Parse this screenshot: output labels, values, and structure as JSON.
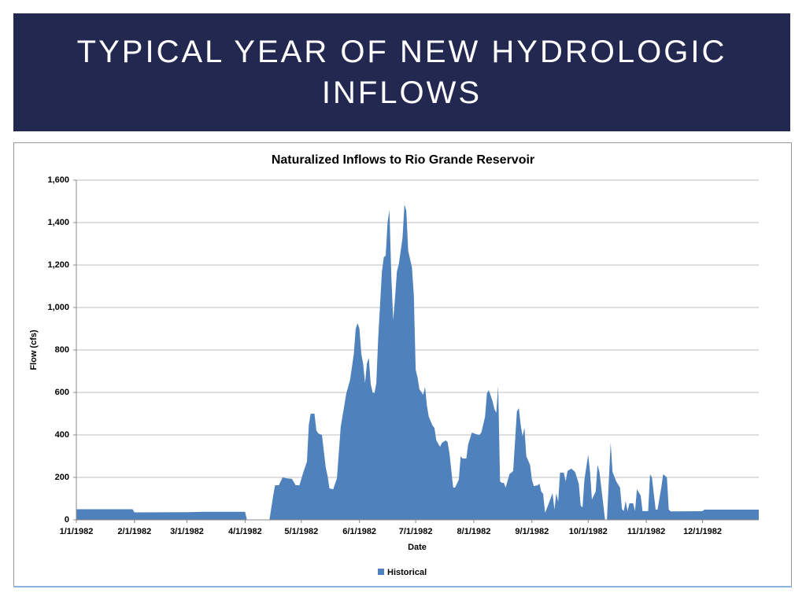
{
  "header": {
    "title": "TYPICAL YEAR OF NEW HYDROLOGIC INFLOWS"
  },
  "chart_data": {
    "type": "area",
    "title": "Naturalized Inflows to Rio Grande Reservoir",
    "x_label": "Date",
    "y_label": "Flow (cfs)",
    "x": [
      "1982-01-01",
      "1982-01-31",
      "1982-02-01",
      "1982-03-01",
      "1982-03-10",
      "1982-04-01",
      "1982-04-02",
      "1982-04-14",
      "1982-04-16",
      "1982-04-17",
      "1982-04-19",
      "1982-04-21",
      "1982-04-23",
      "1982-04-26",
      "1982-04-28",
      "1982-04-30",
      "1982-05-02",
      "1982-05-04",
      "1982-05-05",
      "1982-05-06",
      "1982-05-08",
      "1982-05-09",
      "1982-05-10",
      "1982-05-12",
      "1982-05-14",
      "1982-05-15",
      "1982-05-16",
      "1982-05-18",
      "1982-05-20",
      "1982-05-22",
      "1982-05-25",
      "1982-05-27",
      "1982-05-29",
      "1982-05-30",
      "1982-05-31",
      "1982-06-01",
      "1982-06-02",
      "1982-06-03",
      "1982-06-04",
      "1982-06-05",
      "1982-06-06",
      "1982-06-07",
      "1982-06-08",
      "1982-06-09",
      "1982-06-10",
      "1982-06-11",
      "1982-06-13",
      "1982-06-14",
      "1982-06-15",
      "1982-06-16",
      "1982-06-17",
      "1982-06-18",
      "1982-06-19",
      "1982-06-20",
      "1982-06-21",
      "1982-06-22",
      "1982-06-24",
      "1982-06-25",
      "1982-06-26",
      "1982-06-27",
      "1982-06-29",
      "1982-06-30",
      "1982-07-01",
      "1982-07-02",
      "1982-07-03",
      "1982-07-05",
      "1982-07-06",
      "1982-07-07",
      "1982-07-08",
      "1982-07-10",
      "1982-07-11",
      "1982-07-12",
      "1982-07-14",
      "1982-07-15",
      "1982-07-17",
      "1982-07-18",
      "1982-07-19",
      "1982-07-21",
      "1982-07-22",
      "1982-07-24",
      "1982-07-25",
      "1982-07-26",
      "1982-07-28",
      "1982-07-29",
      "1982-07-31",
      "1982-08-02",
      "1982-08-04",
      "1982-08-05",
      "1982-08-07",
      "1982-08-08",
      "1982-08-09",
      "1982-08-11",
      "1982-08-12",
      "1982-08-13",
      "1982-08-14",
      "1982-08-15",
      "1982-08-16",
      "1982-08-17",
      "1982-08-18",
      "1982-08-20",
      "1982-08-22",
      "1982-08-24",
      "1982-08-25",
      "1982-08-26",
      "1982-08-27",
      "1982-08-28",
      "1982-08-29",
      "1982-08-31",
      "1982-09-01",
      "1982-09-02",
      "1982-09-04",
      "1982-09-05",
      "1982-09-06",
      "1982-09-07",
      "1982-09-08",
      "1982-09-10",
      "1982-09-12",
      "1982-09-13",
      "1982-09-14",
      "1982-09-15",
      "1982-09-16",
      "1982-09-18",
      "1982-09-19",
      "1982-09-20",
      "1982-09-22",
      "1982-09-24",
      "1982-09-26",
      "1982-09-27",
      "1982-09-28",
      "1982-09-29",
      "1982-10-01",
      "1982-10-02",
      "1982-10-03",
      "1982-10-04",
      "1982-10-05",
      "1982-10-06",
      "1982-10-07",
      "1982-10-09",
      "1982-10-10",
      "1982-10-11",
      "1982-10-13",
      "1982-10-14",
      "1982-10-16",
      "1982-10-18",
      "1982-10-19",
      "1982-10-20",
      "1982-10-21",
      "1982-10-22",
      "1982-10-23",
      "1982-10-25",
      "1982-10-26",
      "1982-10-27",
      "1982-10-29",
      "1982-10-30",
      "1982-11-02",
      "1982-11-03",
      "1982-11-04",
      "1982-11-06",
      "1982-11-07",
      "1982-11-09",
      "1982-11-10",
      "1982-11-12",
      "1982-11-13",
      "1982-11-14",
      "1982-12-01",
      "1982-12-02",
      "1982-12-31"
    ],
    "series": [
      {
        "name": "Historical",
        "color": "#4f81bd",
        "values": [
          50,
          50,
          35,
          36,
          38,
          38,
          0,
          0,
          115,
          163,
          163,
          200,
          196,
          193,
          163,
          163,
          222,
          274,
          448,
          500,
          500,
          422,
          407,
          400,
          248,
          207,
          148,
          144,
          196,
          437,
          596,
          659,
          781,
          900,
          926,
          900,
          781,
          733,
          644,
          737,
          763,
          641,
          600,
          596,
          644,
          856,
          1170,
          1237,
          1244,
          1400,
          1459,
          1150,
          940,
          1048,
          1170,
          1204,
          1330,
          1485,
          1456,
          1267,
          1189,
          1059,
          707,
          670,
          615,
          589,
          626,
          537,
          485,
          444,
          433,
          374,
          344,
          363,
          374,
          367,
          315,
          152,
          152,
          189,
          300,
          289,
          289,
          356,
          411,
          404,
          400,
          411,
          485,
          596,
          611,
          559,
          522,
          504,
          630,
          181,
          174,
          174,
          152,
          215,
          230,
          511,
          526,
          448,
          393,
          433,
          300,
          259,
          189,
          159,
          163,
          170,
          133,
          122,
          33,
          78,
          126,
          48,
          126,
          85,
          222,
          222,
          181,
          230,
          241,
          226,
          170,
          67,
          59,
          189,
          307,
          226,
          96,
          115,
          133,
          259,
          226,
          78,
          0,
          0,
          363,
          226,
          181,
          152,
          52,
          41,
          89,
          41,
          78,
          78,
          41,
          144,
          115,
          41,
          41,
          215,
          200,
          48,
          48,
          152,
          215,
          200,
          48,
          40,
          41,
          48,
          48
        ]
      }
    ],
    "xlim": [
      "1982-01-01",
      "1982-12-31"
    ],
    "xticks": [
      {
        "value": "1982-01-01",
        "label": "1/1/1982"
      },
      {
        "value": "1982-02-01",
        "label": "2/1/1982"
      },
      {
        "value": "1982-03-01",
        "label": "3/1/1982"
      },
      {
        "value": "1982-04-01",
        "label": "4/1/1982"
      },
      {
        "value": "1982-05-01",
        "label": "5/1/1982"
      },
      {
        "value": "1982-06-01",
        "label": "6/1/1982"
      },
      {
        "value": "1982-07-01",
        "label": "7/1/1982"
      },
      {
        "value": "1982-08-01",
        "label": "8/1/1982"
      },
      {
        "value": "1982-09-01",
        "label": "9/1/1982"
      },
      {
        "value": "1982-10-01",
        "label": "10/1/1982"
      },
      {
        "value": "1982-11-01",
        "label": "11/1/1982"
      },
      {
        "value": "1982-12-01",
        "label": "12/1/1982"
      }
    ],
    "ylim": [
      0,
      1600
    ],
    "yticks": [
      0,
      200,
      400,
      600,
      800,
      {
        "value": 1000,
        "label": "1,000"
      },
      {
        "value": 1200,
        "label": "1,200"
      },
      {
        "value": 1400,
        "label": "1,400"
      },
      {
        "value": 1600,
        "label": "1,600"
      }
    ],
    "grid": true,
    "legend": "bottom"
  }
}
